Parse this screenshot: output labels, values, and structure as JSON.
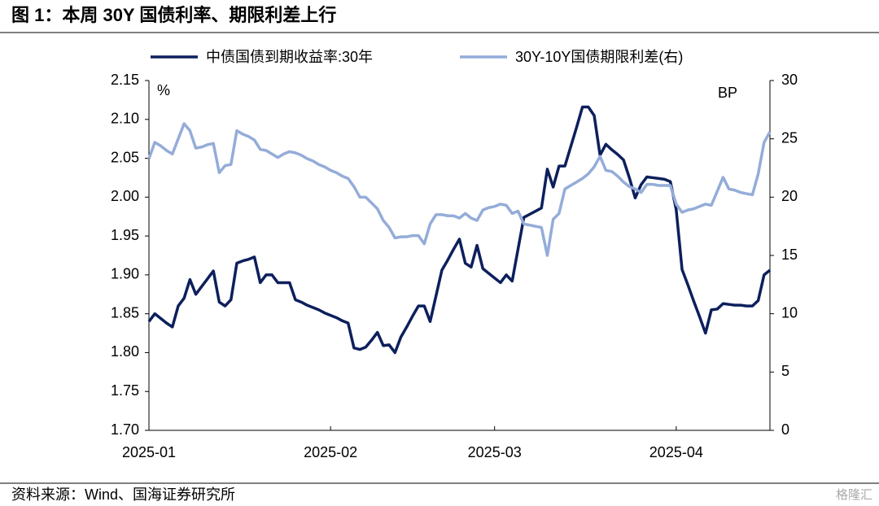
{
  "chart_data": {
    "type": "line",
    "title": "图 1：本周 30Y 国债利率、期限利差上行",
    "source": "资料来源：Wind、国海证券研究所",
    "watermark": "格隆汇",
    "ylabel": "%",
    "y2label": "BP",
    "categories": [
      "2025-01",
      null,
      null,
      null,
      null,
      null,
      null,
      null,
      null,
      null,
      null,
      null,
      null,
      null,
      null,
      null,
      null,
      null,
      null,
      null,
      null,
      null,
      null,
      null,
      null,
      null,
      null,
      null,
      null,
      null,
      null,
      "2025-02",
      null,
      null,
      null,
      null,
      null,
      null,
      null,
      null,
      null,
      null,
      null,
      null,
      null,
      null,
      null,
      null,
      null,
      null,
      null,
      null,
      null,
      null,
      null,
      null,
      null,
      null,
      null,
      "2025-03",
      null,
      null,
      null,
      null,
      null,
      null,
      null,
      null,
      null,
      null,
      null,
      null,
      null,
      null,
      null,
      null,
      null,
      null,
      null,
      null,
      null,
      null,
      null,
      null,
      null,
      null,
      null,
      null,
      null,
      null,
      "2025-04",
      null,
      null,
      null,
      null,
      null,
      null,
      null,
      null,
      null,
      null,
      null,
      null,
      null,
      null,
      null,
      null
    ],
    "series": [
      {
        "name": "中债国债到期收益率:30年",
        "color": "#0d1f5c",
        "axis": "y",
        "values": [
          1.84,
          1.85,
          1.844,
          1.838,
          1.833,
          1.86,
          1.87,
          1.894,
          1.875,
          1.885,
          1.895,
          1.905,
          1.865,
          1.86,
          1.868,
          1.915,
          1.918,
          1.92,
          1.923,
          1.89,
          1.9,
          1.9,
          1.89,
          1.89,
          1.89,
          1.868,
          1.865,
          1.861,
          1.858,
          1.855,
          1.851,
          1.848,
          1.845,
          1.841,
          1.838,
          1.806,
          1.804,
          1.807,
          1.816,
          1.826,
          1.809,
          1.81,
          1.8,
          1.82,
          1.833,
          1.847,
          1.86,
          1.86,
          1.84,
          1.873,
          1.906,
          1.919,
          1.933,
          1.946,
          1.915,
          1.91,
          1.938,
          1.908,
          1.902,
          1.896,
          1.89,
          1.9,
          1.892,
          1.933,
          1.974,
          1.978,
          1.982,
          1.986,
          2.036,
          2.013,
          2.04,
          2.04,
          2.065,
          2.09,
          2.116,
          2.116,
          2.105,
          2.054,
          2.068,
          2.061,
          2.055,
          2.048,
          2.025,
          1.999,
          2.016,
          2.026,
          2.025,
          2.024,
          2.023,
          2.02,
          1.984,
          1.907,
          1.887,
          1.866,
          1.846,
          1.825,
          1.855,
          1.856,
          1.863,
          1.862,
          1.861,
          1.861,
          1.86,
          1.86,
          1.867,
          1.9,
          1.906
        ]
      },
      {
        "name": "30Y-10Y国债期限利差(右)",
        "color": "#94acd8",
        "axis": "y2",
        "values": [
          23.3,
          24.7,
          24.4,
          24.0,
          23.7,
          25.0,
          26.3,
          25.7,
          24.2,
          24.3,
          24.5,
          24.6,
          22.1,
          22.7,
          22.8,
          25.7,
          25.4,
          25.2,
          24.9,
          24.1,
          24.0,
          23.7,
          23.4,
          23.7,
          23.9,
          23.8,
          23.6,
          23.3,
          23.1,
          22.8,
          22.6,
          22.3,
          22.1,
          21.8,
          21.6,
          20.9,
          20.0,
          20.0,
          19.5,
          19.0,
          18.0,
          17.4,
          16.5,
          16.6,
          16.6,
          16.7,
          16.7,
          16.0,
          17.7,
          18.5,
          18.5,
          18.4,
          18.4,
          18.2,
          18.6,
          18.2,
          18.0,
          18.9,
          19.1,
          19.2,
          19.4,
          19.3,
          18.6,
          18.8,
          17.7,
          17.6,
          17.5,
          17.4,
          15.0,
          18.1,
          18.6,
          20.7,
          21.0,
          21.3,
          21.6,
          22.0,
          22.6,
          23.5,
          22.3,
          22.2,
          21.8,
          21.3,
          20.9,
          20.7,
          20.4,
          21.1,
          21.1,
          21.0,
          21.0,
          21.0,
          19.4,
          18.7,
          18.9,
          19.0,
          19.2,
          19.4,
          19.3,
          20.5,
          21.7,
          20.7,
          20.6,
          20.4,
          20.3,
          20.2,
          22.0,
          24.7,
          25.6
        ]
      }
    ],
    "ylim": [
      1.7,
      2.15
    ],
    "yticks": [
      {
        "value": 1.7,
        "label": "1.70"
      },
      {
        "value": 1.75,
        "label": "1.75"
      },
      {
        "value": 1.8,
        "label": "1.80"
      },
      {
        "value": 1.85,
        "label": "1.85"
      },
      {
        "value": 1.9,
        "label": "1.90"
      },
      {
        "value": 1.95,
        "label": "1.95"
      },
      {
        "value": 2.0,
        "label": "2.00"
      },
      {
        "value": 2.05,
        "label": "2.05"
      },
      {
        "value": 2.1,
        "label": "2.10"
      },
      {
        "value": 2.15,
        "label": "2.15"
      }
    ],
    "y2lim": [
      0,
      30
    ],
    "y2ticks": [
      0,
      5,
      10,
      15,
      20,
      25,
      30
    ],
    "legend": "top"
  }
}
